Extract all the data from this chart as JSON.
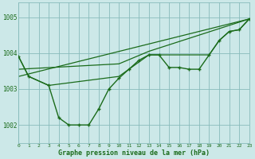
{
  "background_color": "#cce8e8",
  "grid_color": "#88bbbb",
  "line_color": "#1a6b1a",
  "marker_color": "#1a6b1a",
  "xlabel": "Graphe pression niveau de la mer (hPa)",
  "xlim": [
    0,
    23
  ],
  "ylim": [
    1001.5,
    1005.4
  ],
  "yticks": [
    1002,
    1003,
    1004,
    1005
  ],
  "xticks": [
    0,
    1,
    2,
    3,
    4,
    5,
    6,
    7,
    8,
    9,
    10,
    11,
    12,
    13,
    14,
    15,
    16,
    17,
    18,
    19,
    20,
    21,
    22,
    23
  ],
  "series": [
    {
      "x": [
        0,
        1,
        3,
        4,
        5,
        6,
        7,
        8,
        9,
        10,
        11,
        12,
        13,
        14,
        15,
        16,
        17,
        18,
        19,
        20,
        21,
        22,
        23
      ],
      "y": [
        1003.9,
        1003.35,
        1003.1,
        1002.2,
        1002.0,
        1002.0,
        1002.0,
        1002.45,
        1003.0,
        1003.3,
        1003.55,
        1003.8,
        1003.95,
        1003.95,
        1003.6,
        1003.6,
        1003.55,
        1003.55,
        1003.95,
        1004.35,
        1004.6,
        1004.65,
        1004.95
      ],
      "has_markers": true,
      "linewidth": 1.0
    },
    {
      "x": [
        0,
        1,
        3,
        10,
        13,
        14,
        19,
        20,
        21,
        22,
        23
      ],
      "y": [
        1003.9,
        1003.35,
        1003.1,
        1003.35,
        1003.95,
        1003.95,
        1003.95,
        1004.35,
        1004.6,
        1004.65,
        1004.95
      ],
      "has_markers": false,
      "linewidth": 0.9
    },
    {
      "x": [
        0,
        23
      ],
      "y": [
        1003.35,
        1004.95
      ],
      "has_markers": false,
      "linewidth": 0.9
    },
    {
      "x": [
        0,
        10,
        13,
        23
      ],
      "y": [
        1003.55,
        1003.7,
        1004.05,
        1004.95
      ],
      "has_markers": false,
      "linewidth": 0.9
    }
  ]
}
